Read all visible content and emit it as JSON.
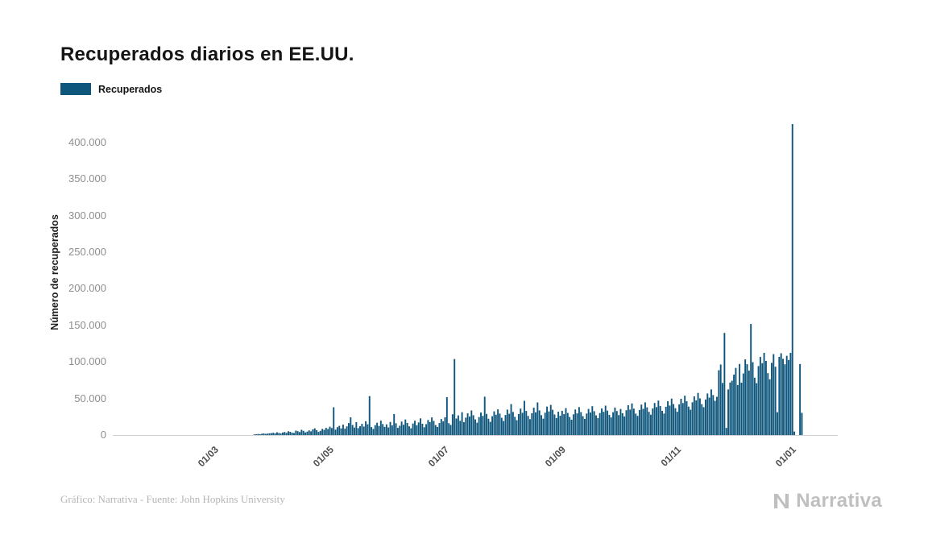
{
  "page": {
    "title": "Recuperados diarios en EE.UU.",
    "footer_credit": "Gráfico: Narrativa - Fuente: John Hopkins University",
    "brand": "Narrativa"
  },
  "legend": {
    "label": "Recuperados",
    "color": "#0f567c"
  },
  "chart_data": {
    "type": "bar",
    "title": "Recuperados diarios en EE.UU.",
    "series_name": "Recuperados",
    "xlabel": "",
    "ylabel": "Número de recuperados",
    "bar_color": "#0f567c",
    "grid": false,
    "legend_position": "top-left",
    "ylim": [
      0,
      435000
    ],
    "y_ticks": [
      {
        "value": 0,
        "label": "0"
      },
      {
        "value": 50000,
        "label": "50.000"
      },
      {
        "value": 100000,
        "label": "100.000"
      },
      {
        "value": 150000,
        "label": "150.000"
      },
      {
        "value": 200000,
        "label": "200.000"
      },
      {
        "value": 250000,
        "label": "250.000"
      },
      {
        "value": 300000,
        "label": "300.000"
      },
      {
        "value": 350000,
        "label": "350.000"
      },
      {
        "value": 400000,
        "label": "400.000"
      }
    ],
    "x_axis": {
      "start": "2020-01-08",
      "total_days": 384,
      "ticks": [
        {
          "label": "01/03",
          "day": 53
        },
        {
          "label": "01/05",
          "day": 114
        },
        {
          "label": "01/07",
          "day": 175
        },
        {
          "label": "01/09",
          "day": 237
        },
        {
          "label": "01/11",
          "day": 298
        },
        {
          "label": "01/01",
          "day": 359
        }
      ]
    },
    "start_date": "2020-03-23",
    "values": [
      800,
      1200,
      1500,
      1100,
      1800,
      2200,
      1600,
      2000,
      2400,
      2600,
      3100,
      2300,
      3800,
      2900,
      2100,
      3400,
      4200,
      3000,
      5200,
      4400,
      3200,
      2800,
      6100,
      5300,
      4100,
      7200,
      5800,
      3600,
      4700,
      6400,
      5100,
      7800,
      9200,
      6600,
      4300,
      5700,
      8400,
      7100,
      9800,
      8200,
      11400,
      9600,
      38000,
      7400,
      10800,
      12600,
      9100,
      14200,
      8700,
      11900,
      16400,
      24300,
      13800,
      10200,
      17600,
      9400,
      12100,
      15300,
      11600,
      18900,
      14700,
      53200,
      10900,
      8300,
      13500,
      16800,
      12400,
      19700,
      15100,
      11200,
      14600,
      10400,
      17900,
      13200,
      28700,
      16100,
      9800,
      12700,
      18400,
      14100,
      21300,
      16600,
      11900,
      9200,
      15800,
      19600,
      13400,
      17200,
      22800,
      15400,
      10700,
      14900,
      20600,
      17800,
      24100,
      19300,
      13600,
      11100,
      16400,
      21900,
      18700,
      24300,
      51800,
      16200,
      13800,
      28400,
      103900,
      22600,
      26900,
      19400,
      31200,
      17600,
      23800,
      29700,
      25300,
      33600,
      27100,
      21400,
      16900,
      24600,
      30800,
      26200,
      52400,
      28900,
      22300,
      18100,
      25700,
      32400,
      27800,
      35100,
      29300,
      23600,
      19200,
      27400,
      34800,
      29100,
      42300,
      31600,
      24900,
      20300,
      28700,
      36200,
      30400,
      46800,
      32900,
      26100,
      21700,
      29800,
      37400,
      31100,
      44600,
      33700,
      27200,
      22400,
      30600,
      38900,
      32300,
      41200,
      34600,
      28100,
      23300,
      31900,
      26400,
      33100,
      28600,
      36800,
      30200,
      24700,
      20900,
      28300,
      34900,
      29600,
      38200,
      31400,
      25800,
      22100,
      29400,
      35700,
      30800,
      39400,
      32600,
      26900,
      23200,
      30100,
      36400,
      31700,
      40200,
      33400,
      27600,
      24100,
      31200,
      37600,
      32800,
      27300,
      35600,
      29800,
      25400,
      33900,
      40800,
      34700,
      43200,
      36100,
      29300,
      26200,
      34300,
      41600,
      35800,
      44700,
      37900,
      31600,
      27800,
      36400,
      43800,
      38200,
      47100,
      39600,
      33100,
      29400,
      38700,
      46200,
      40300,
      49800,
      42400,
      36700,
      31800,
      41900,
      49600,
      43700,
      53800,
      46200,
      38900,
      34600,
      44800,
      52900,
      47400,
      57600,
      50100,
      42300,
      38100,
      48600,
      56800,
      51200,
      62400,
      54700,
      46800,
      52300,
      88600,
      96400,
      71200,
      139600,
      9800,
      62400,
      71800,
      74300,
      82600,
      91800,
      68400,
      97200,
      71600,
      84200,
      103400,
      96800,
      88100,
      151900,
      99600,
      78400,
      70900,
      94300,
      106800,
      98200,
      112400,
      101300,
      84600,
      76200,
      98700,
      110600,
      93400,
      31200,
      106900,
      111800,
      104200,
      96700,
      108300,
      102600,
      112400,
      425100,
      4800,
      0,
      0,
      97100,
      30400
    ]
  }
}
